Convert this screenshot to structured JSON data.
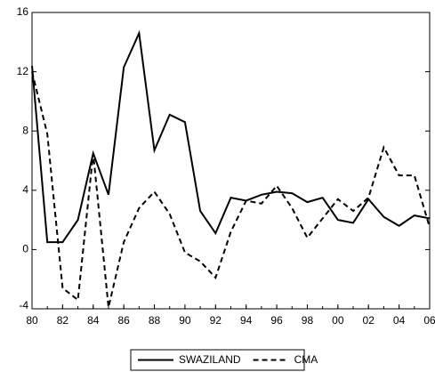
{
  "chart_data": {
    "type": "line",
    "x": [
      1980,
      1981,
      1982,
      1983,
      1984,
      1985,
      1986,
      1987,
      1988,
      1989,
      1990,
      1991,
      1992,
      1993,
      1994,
      1995,
      1996,
      1997,
      1998,
      1999,
      2000,
      2001,
      2002,
      2003,
      2004,
      2005,
      2006
    ],
    "series": [
      {
        "name": "SWAZILAND",
        "color": "#000000",
        "style": "solid",
        "values": [
          12.4,
          0.5,
          0.5,
          2.0,
          6.5,
          3.7,
          12.3,
          14.6,
          6.7,
          9.1,
          8.6,
          2.6,
          1.1,
          3.5,
          3.3,
          3.7,
          3.9,
          3.8,
          3.2,
          3.5,
          2.0,
          1.8,
          3.4,
          2.2,
          1.6,
          2.3,
          2.1
        ]
      },
      {
        "name": "CMA",
        "color": "#000000",
        "style": "dashed",
        "values": [
          12.0,
          7.8,
          -2.6,
          -3.4,
          6.5,
          -3.9,
          0.5,
          2.8,
          3.9,
          2.4,
          -0.2,
          -0.8,
          -1.9,
          1.2,
          3.3,
          3.1,
          4.3,
          2.8,
          0.8,
          2.1,
          3.4,
          2.6,
          3.5,
          6.9,
          5.0,
          5.0,
          1.5
        ]
      }
    ],
    "xlim": [
      1980,
      2006
    ],
    "xticks": [
      {
        "value": 1980,
        "label": "80"
      },
      {
        "value": 1982,
        "label": "82"
      },
      {
        "value": 1984,
        "label": "84"
      },
      {
        "value": 1986,
        "label": "86"
      },
      {
        "value": 1988,
        "label": "88"
      },
      {
        "value": 1990,
        "label": "90"
      },
      {
        "value": 1992,
        "label": "92"
      },
      {
        "value": 1994,
        "label": "94"
      },
      {
        "value": 1996,
        "label": "96"
      },
      {
        "value": 1998,
        "label": "98"
      },
      {
        "value": 2000,
        "label": "00"
      },
      {
        "value": 2002,
        "label": "02"
      },
      {
        "value": 2004,
        "label": "04"
      },
      {
        "value": 2006,
        "label": "06"
      }
    ],
    "ylim": [
      -4,
      16
    ],
    "yticks": [
      -4,
      0,
      4,
      8,
      12,
      16
    ],
    "grid": false,
    "legend": "bottom"
  }
}
